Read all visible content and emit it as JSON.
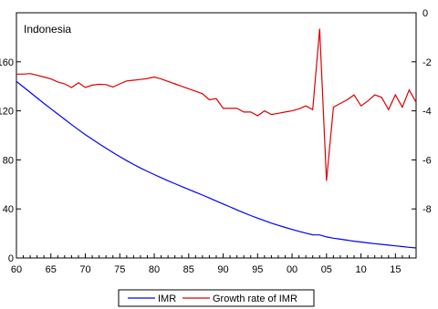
{
  "chart_data": {
    "type": "line",
    "inner_title": "Indonesia",
    "x": [
      1960,
      1961,
      1962,
      1963,
      1964,
      1965,
      1966,
      1967,
      1968,
      1969,
      1970,
      1971,
      1972,
      1973,
      1974,
      1975,
      1976,
      1977,
      1978,
      1979,
      1980,
      1981,
      1982,
      1983,
      1984,
      1985,
      1986,
      1987,
      1988,
      1989,
      1990,
      1991,
      1992,
      1993,
      1994,
      1995,
      1996,
      1997,
      1998,
      1999,
      2000,
      2001,
      2002,
      2003,
      2004,
      2005,
      2006,
      2007,
      2008,
      2009,
      2010,
      2011,
      2012,
      2013,
      2014,
      2015,
      2016,
      2017,
      2018
    ],
    "x_ticks": [
      1960,
      1965,
      1970,
      1975,
      1980,
      1985,
      1990,
      1995,
      2000,
      2005,
      2010,
      2015
    ],
    "x_tick_labels": [
      "60",
      "65",
      "70",
      "75",
      "80",
      "85",
      "90",
      "95",
      "00",
      "05",
      "10",
      "15"
    ],
    "xlim": [
      1960,
      2018
    ],
    "left_axis": {
      "ylim": [
        0,
        200
      ],
      "ticks": [
        0,
        40,
        80,
        120,
        160
      ],
      "tick_labels": [
        "0",
        "40",
        "80",
        "120",
        "160"
      ]
    },
    "right_axis": {
      "ylim": [
        -10,
        0
      ],
      "ticks": [
        -8,
        -6,
        -4,
        -2,
        0
      ],
      "tick_labels": [
        "-8",
        "-6",
        "-4",
        "-2",
        "0"
      ]
    },
    "series": [
      {
        "name": "IMR",
        "axis": "left",
        "color": "#0000ff",
        "values": [
          144,
          139.5,
          135,
          130.5,
          126,
          121.7,
          117.4,
          113.1,
          108.8,
          104.6,
          100.6,
          96.8,
          93.1,
          89.5,
          86,
          82.6,
          79.4,
          76.3,
          73.4,
          70.6,
          68,
          65.5,
          63,
          60.6,
          58.2,
          55.9,
          53.6,
          51.3,
          48.9,
          46.4,
          44,
          41.6,
          39.2,
          36.9,
          34.6,
          32.5,
          30.4,
          28.4,
          26.6,
          24.9,
          23.3,
          21.7,
          20.2,
          18.9,
          18.8,
          17.2,
          16.1,
          15.3,
          14.5,
          13.7,
          13,
          12.3,
          11.7,
          11.1,
          10.5,
          9.9,
          9.3,
          8.7,
          8.2
        ]
      },
      {
        "name": "Growth rate of IMR",
        "axis": "right",
        "color": "#dd0000",
        "values": [
          -2.5,
          -2.5,
          -2.48,
          -2.55,
          -2.62,
          -2.7,
          -2.82,
          -2.9,
          -3.05,
          -2.85,
          -3.05,
          -2.95,
          -2.92,
          -2.93,
          -3.03,
          -2.9,
          -2.78,
          -2.75,
          -2.72,
          -2.68,
          -2.62,
          -2.7,
          -2.8,
          -2.9,
          -3.0,
          -3.1,
          -3.2,
          -3.3,
          -3.55,
          -3.5,
          -3.9,
          -3.9,
          -3.9,
          -4.05,
          -4.05,
          -4.2,
          -4.0,
          -4.15,
          -4.1,
          -4.05,
          -4.0,
          -3.92,
          -3.8,
          -3.95,
          -0.65,
          -6.85,
          -3.85,
          -3.7,
          -3.55,
          -3.35,
          -3.8,
          -3.6,
          -3.35,
          -3.45,
          -3.95,
          -3.35,
          -3.85,
          -3.15,
          -3.65
        ]
      }
    ],
    "grid": false,
    "legend_placement": "bottom-center"
  }
}
